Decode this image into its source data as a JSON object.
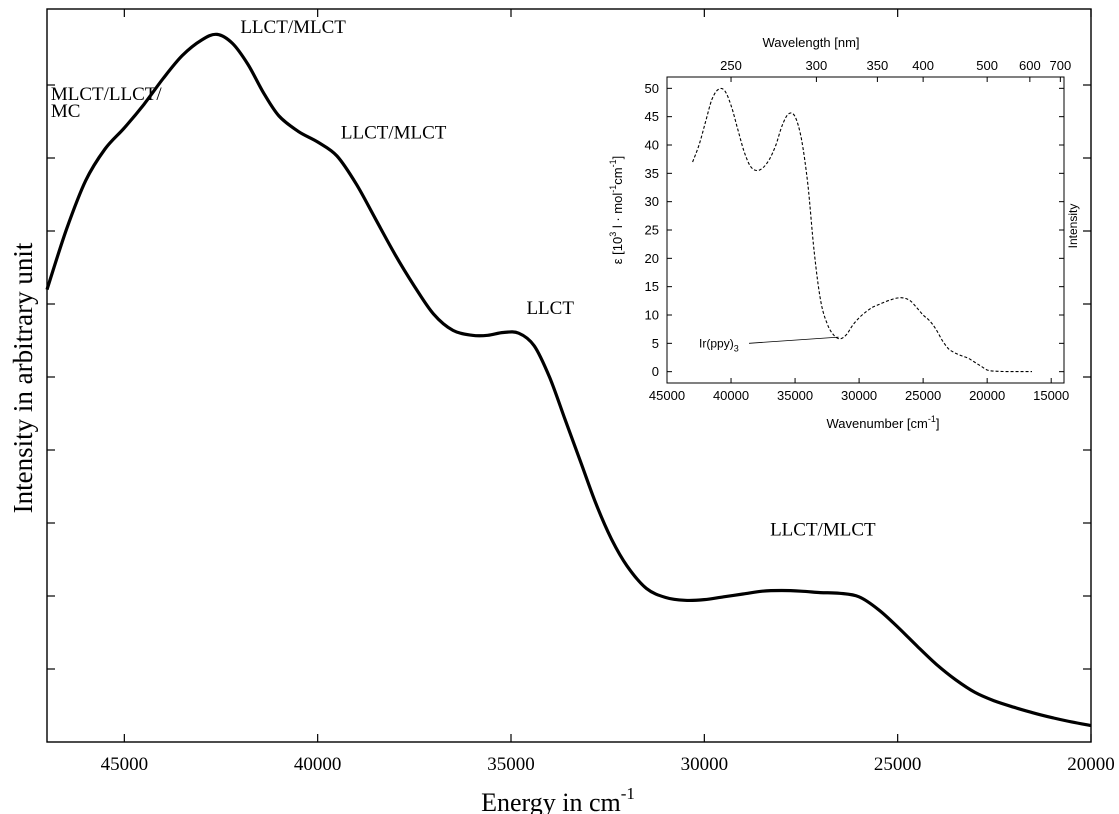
{
  "chart_data": [
    {
      "type": "line",
      "xlabel": "Energy in cm",
      "xlabel_sup": "-1",
      "ylabel": "Intensity in arbitrary unit",
      "xlim": [
        47000,
        20000
      ],
      "ylim": [
        0,
        1
      ],
      "x_reversed": true,
      "x_ticks": [
        45000,
        40000,
        35000,
        30000,
        25000,
        20000
      ],
      "y_tick_labels_shown": false,
      "grid": false,
      "legend": "none",
      "series": [
        {
          "line_style": "solid",
          "x": [
            47000,
            46500,
            46000,
            45500,
            45000,
            44500,
            44000,
            43500,
            43000,
            42600,
            42200,
            41800,
            41400,
            41000,
            40500,
            40000,
            39500,
            39000,
            38500,
            38000,
            37500,
            37000,
            36500,
            36000,
            35600,
            35200,
            34800,
            34400,
            34000,
            33600,
            33200,
            32800,
            32400,
            32000,
            31500,
            31000,
            30500,
            30000,
            29500,
            29000,
            28500,
            28000,
            27500,
            27000,
            26500,
            26000,
            25500,
            25000,
            24500,
            24000,
            23500,
            23000,
            22500,
            22000,
            21500,
            21000,
            20500,
            20000
          ],
          "y": [
            0.635,
            0.72,
            0.79,
            0.835,
            0.865,
            0.898,
            0.935,
            0.968,
            0.99,
            0.998,
            0.985,
            0.955,
            0.915,
            0.882,
            0.86,
            0.845,
            0.825,
            0.785,
            0.735,
            0.685,
            0.64,
            0.6,
            0.577,
            0.57,
            0.57,
            0.574,
            0.573,
            0.555,
            0.51,
            0.45,
            0.39,
            0.33,
            0.28,
            0.242,
            0.21,
            0.197,
            0.193,
            0.194,
            0.198,
            0.202,
            0.206,
            0.207,
            0.206,
            0.204,
            0.203,
            0.198,
            0.18,
            0.155,
            0.128,
            0.102,
            0.08,
            0.062,
            0.05,
            0.041,
            0.033,
            0.026,
            0.02,
            0.015
          ]
        }
      ],
      "annotations": [
        {
          "text_lines": [
            "MLCT/LLCT/",
            "MC"
          ],
          "x": 46900,
          "y": 0.905
        },
        {
          "text_lines": [
            "LLCT/MLCT"
          ],
          "x": 42000,
          "y": 1.0
        },
        {
          "text_lines": [
            "LLCT/MLCT"
          ],
          "x": 39400,
          "y": 0.85
        },
        {
          "text_lines": [
            "LLCT"
          ],
          "x": 34600,
          "y": 0.6
        },
        {
          "text_lines": [
            "LLCT/MLCT"
          ],
          "x": 28300,
          "y": 0.285
        }
      ]
    },
    {
      "type": "line",
      "xlabel": "Wavenumber [cm",
      "xlabel_sup": "-1",
      "xlabel_end": "]",
      "ylabel_parts": [
        "ε [10",
        "3",
        " l · mol",
        "-1",
        "cm",
        "-1",
        "]"
      ],
      "ylabel_right": "Intensity",
      "top_axis_label": "Wavelength [nm]",
      "top_ticks_nm": [
        250,
        300,
        350,
        400,
        500,
        600,
        700
      ],
      "xlim": [
        45000,
        14000
      ],
      "ylim": [
        -2,
        52
      ],
      "x_reversed": true,
      "x_ticks": [
        45000,
        40000,
        35000,
        30000,
        25000,
        20000,
        15000
      ],
      "y_ticks": [
        0,
        5,
        10,
        15,
        20,
        25,
        30,
        35,
        40,
        45,
        50
      ],
      "grid": false,
      "legend": "none",
      "series": [
        {
          "name": "Ir(ppy)",
          "name_sub": "3",
          "line_style": "dashed",
          "x": [
            43000,
            42500,
            42000,
            41500,
            41000,
            40500,
            40000,
            39500,
            39000,
            38500,
            38000,
            37500,
            37000,
            36500,
            36000,
            35500,
            35000,
            34500,
            34000,
            33500,
            33000,
            32500,
            32000,
            31500,
            31000,
            30500,
            30000,
            29500,
            29000,
            28500,
            28000,
            27500,
            27000,
            26500,
            26000,
            25500,
            25000,
            24500,
            24000,
            23500,
            23000,
            22500,
            22000,
            21500,
            21000,
            20500,
            20000,
            19500,
            19000,
            18500,
            18000,
            17500,
            17000,
            16500
          ],
          "y": [
            37,
            40,
            44,
            48,
            49.8,
            49.6,
            47,
            43,
            39,
            36.3,
            35.5,
            36,
            37.5,
            40,
            43.5,
            45.5,
            45,
            41,
            33,
            21,
            12.5,
            8.5,
            6.5,
            5.8,
            6.5,
            8.2,
            9.5,
            10.5,
            11.3,
            11.8,
            12.3,
            12.7,
            13,
            13,
            12.5,
            11.3,
            10,
            9,
            7.5,
            5.5,
            4,
            3.3,
            2.8,
            2.4,
            1.7,
            1,
            0.3,
            0.1,
            0.05,
            0.02,
            0.02,
            0.02,
            0.02,
            0.02
          ]
        }
      ],
      "annotations": [
        {
          "text": "Ir(ppy)",
          "sub": "3",
          "x": 42500,
          "y": 4.3,
          "arrow_to": [
            31600,
            6.1
          ]
        }
      ]
    }
  ]
}
